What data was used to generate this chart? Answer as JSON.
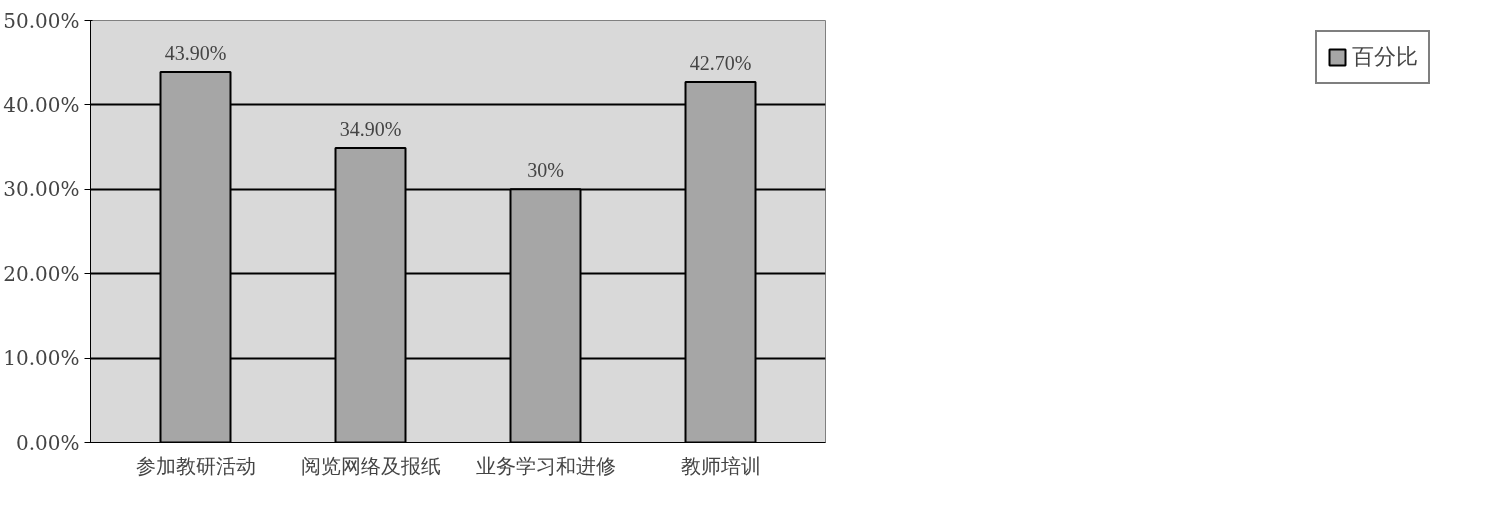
{
  "chart_data": {
    "type": "bar",
    "categories": [
      "参加教研活动",
      "阅览网络及报纸",
      "业务学习和进修",
      "教师培训"
    ],
    "series": [
      {
        "name": "百分比",
        "color": "#a6a6a6",
        "values": [
          43.9,
          34.9,
          30,
          42.7
        ],
        "value_labels": [
          "43.90%",
          "34.90%",
          "30%",
          "42.70%"
        ]
      }
    ],
    "ylim": [
      0,
      50
    ],
    "yticks": [
      {
        "value": 0,
        "label": "0.00%"
      },
      {
        "value": 10,
        "label": "10.00%"
      },
      {
        "value": 20,
        "label": "20.00%"
      },
      {
        "value": 30,
        "label": "30.00%"
      },
      {
        "value": 40,
        "label": "40.00%"
      },
      {
        "value": 50,
        "label": "50.00%"
      }
    ],
    "grid": "y",
    "legend": "right"
  }
}
